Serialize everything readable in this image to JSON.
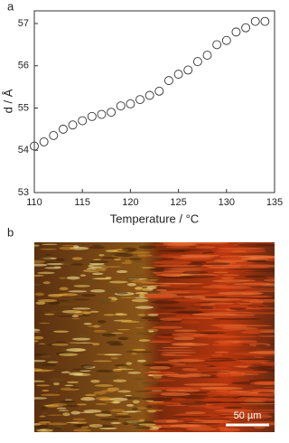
{
  "panel_labels": [
    "a",
    "b"
  ],
  "chart_data": {
    "type": "scatter",
    "x_label": "Temperature / °C",
    "y_label": "d / Å",
    "x": [
      110,
      111,
      112,
      113,
      114,
      115,
      116,
      117,
      118,
      119,
      120,
      121,
      122,
      123,
      124,
      125,
      126,
      127,
      128,
      129,
      130,
      131,
      132,
      133,
      134
    ],
    "values": [
      54.1,
      54.2,
      54.35,
      54.5,
      54.6,
      54.7,
      54.8,
      54.85,
      54.9,
      55.05,
      55.1,
      55.2,
      55.3,
      55.4,
      55.65,
      55.8,
      55.9,
      56.1,
      56.25,
      56.5,
      56.6,
      56.8,
      56.9,
      57.05,
      57.05
    ],
    "color": "#333333",
    "xlim": [
      110,
      135
    ],
    "xticks": [
      110,
      115,
      120,
      125,
      130,
      135
    ],
    "ylim": [
      53,
      57.3
    ],
    "yticks": [
      53,
      54,
      55,
      56,
      57
    ]
  },
  "image": {
    "scale_bar": "50 µm"
  }
}
